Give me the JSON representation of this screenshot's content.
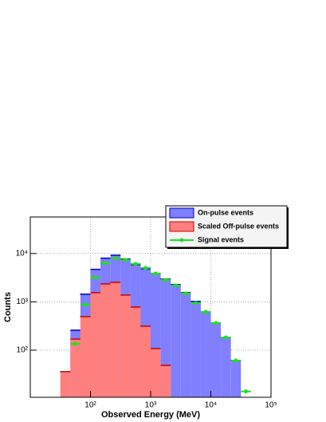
{
  "chart_data": {
    "type": "histogram",
    "xlabel": "Observed Energy (MeV)",
    "ylabel": "Counts",
    "xlog": true,
    "ylog": true,
    "grid": true,
    "legend": "top-right",
    "bins": [
      31.6,
      46.4,
      68.1,
      100,
      146.8,
      215.4,
      316.2,
      464.2,
      681.3,
      1000,
      1468,
      2154,
      3162,
      4642,
      6813,
      10000,
      14678,
      21544,
      31623,
      46416
    ],
    "series": [
      {
        "name": "On-pulse events",
        "color": "#7f7fff",
        "edge": "#0000cc",
        "style": "bars",
        "values": [
          null,
          259,
          1440,
          4700,
          8000,
          9250,
          7660,
          5870,
          4850,
          3860,
          2960,
          2270,
          1550,
          1020,
          620,
          365,
          183,
          61,
          null
        ]
      },
      {
        "name": "Scaled Off-pulse events",
        "color": "#ff7f7f",
        "edge": "#cc0000",
        "style": "bars",
        "values": [
          36,
          170,
          494,
          1550,
          2350,
          2540,
          1380,
          780,
          313,
          108,
          48.5,
          null,
          null,
          null,
          null,
          null,
          null,
          null,
          null
        ]
      },
      {
        "name": "Signal events",
        "color": "#22dd22",
        "edge": "#22dd22",
        "style": "points",
        "values": [
          null,
          135,
          875,
          3190,
          6330,
          7960,
          7370,
          6100,
          5040,
          3860,
          2850,
          2180,
          1490,
          940,
          620,
          365,
          183,
          61,
          14
        ]
      }
    ],
    "xlim": [
      10,
      100000
    ],
    "ylim": [
      10.6,
      57000
    ],
    "xticks": [
      {
        "value": 100,
        "label": "10²"
      },
      {
        "value": 1000,
        "label": "10³"
      },
      {
        "value": 10000,
        "label": "10⁴"
      },
      {
        "value": 100000,
        "label": "10⁵"
      }
    ],
    "yticks": [
      {
        "value": 100,
        "label": "10²"
      },
      {
        "value": 1000,
        "label": "10³"
      },
      {
        "value": 10000,
        "label": "10⁴"
      }
    ]
  }
}
